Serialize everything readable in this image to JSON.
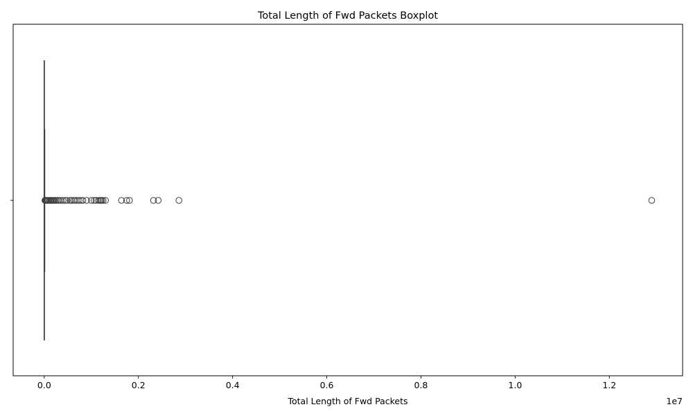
{
  "chart_data": {
    "type": "boxplot",
    "orientation": "horizontal",
    "title": "Total Length of Fwd Packets Boxplot",
    "xlabel": "Total Length of Fwd Packets",
    "ylabel": "",
    "x_scale_label": "1e7",
    "xlim": [
      -0.066,
      1.3556
    ],
    "x_ticks": [
      0.0,
      0.2,
      0.4,
      0.6,
      0.8,
      1.0,
      1.2
    ],
    "x_tick_labels": [
      "0.0",
      "0.2",
      "0.4",
      "0.6",
      "0.8",
      "1.0",
      "1.2"
    ],
    "grid": false,
    "legend": "none",
    "box": {
      "min": 0.0,
      "q1": 0.0,
      "median": 0.0,
      "q3": 0.0001,
      "whisker_high": 0.0002
    },
    "outliers": [
      0.0015,
      0.0025,
      0.0035,
      0.0045,
      0.006,
      0.008,
      0.01,
      0.012,
      0.014,
      0.016,
      0.018,
      0.02,
      0.022,
      0.025,
      0.028,
      0.031,
      0.035,
      0.04,
      0.044,
      0.048,
      0.055,
      0.058,
      0.062,
      0.065,
      0.07,
      0.074,
      0.078,
      0.082,
      0.09,
      0.1,
      0.106,
      0.11,
      0.115,
      0.118,
      0.12,
      0.122,
      0.125,
      0.13,
      0.164,
      0.175,
      0.181,
      0.232,
      0.242,
      0.286,
      1.29
    ],
    "colors": {
      "box_line": "#3f3f3f",
      "box_fill": "#3274a1",
      "outlier_edge": "#3f3f3f"
    }
  }
}
